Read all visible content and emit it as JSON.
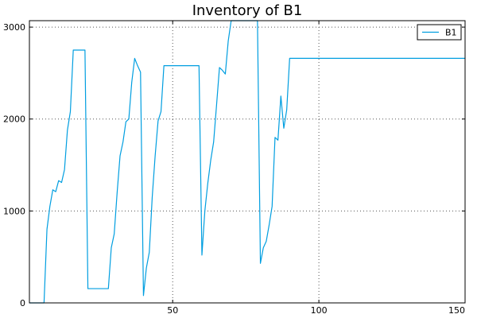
{
  "chart_data": {
    "type": "line",
    "title": "Inventory of B1",
    "xlabel": "",
    "ylabel": "",
    "xlim": [
      1,
      150
    ],
    "ylim": [
      0,
      3070
    ],
    "xticks": [
      50,
      100,
      150
    ],
    "yticks": [
      0,
      1000,
      2000,
      3000
    ],
    "grid": true,
    "legend_position": "top-right",
    "series": [
      {
        "name": "B1",
        "color": "#009ee0",
        "x": [
          1,
          6,
          7,
          8,
          9,
          10,
          11,
          12,
          13,
          14,
          15,
          16,
          17,
          18,
          19,
          20,
          21,
          28,
          29,
          30,
          31,
          32,
          33,
          34,
          35,
          36,
          37,
          38,
          39,
          40,
          41,
          42,
          43,
          44,
          45,
          46,
          47,
          48,
          59,
          60,
          61,
          62,
          63,
          64,
          65,
          66,
          67,
          68,
          69,
          70,
          71,
          78,
          79,
          80,
          81,
          82,
          83,
          84,
          85,
          86,
          87,
          88,
          89,
          90,
          91,
          150
        ],
        "values": [
          0,
          0,
          800,
          1050,
          1230,
          1210,
          1330,
          1310,
          1450,
          1880,
          2080,
          2750,
          2750,
          2750,
          2750,
          2750,
          155,
          155,
          600,
          750,
          1200,
          1600,
          1750,
          1970,
          2000,
          2400,
          2660,
          2580,
          2510,
          80,
          380,
          550,
          1150,
          1600,
          1980,
          2080,
          2580,
          2580,
          2580,
          520,
          1000,
          1300,
          1550,
          1750,
          2150,
          2560,
          2530,
          2490,
          2850,
          3070,
          3070,
          3070,
          3070,
          430,
          600,
          670,
          850,
          1050,
          1800,
          1770,
          2250,
          1900,
          2100,
          2660,
          2660,
          2660
        ]
      }
    ]
  }
}
